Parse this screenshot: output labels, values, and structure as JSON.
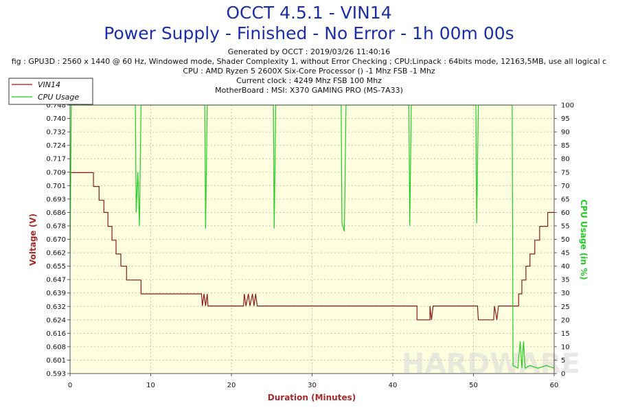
{
  "header": {
    "title": "OCCT 4.5.1 - VIN14",
    "subtitle": "Power Supply - Finished - No Error - 1h 00m 00s",
    "info_lines": [
      "Generated by OCCT : 2019/03/26 11:40:16",
      "fig : GPU3D : 2560 x 1440 @ 60 Hz, Windowed mode, Shader Complexity 1, without Error Checking ; CPU:Linpack : 64bits mode, 12163,5MB, use all logical c",
      "CPU : AMD Ryzen 5 2600X Six-Core Processor () -1 Mhz FSB -1 Mhz",
      "Current clock : 4249 Mhz FSB 100 Mhz",
      "MotherBoard : MSI: X370 GAMING PRO (MS-7A33)"
    ]
  },
  "watermark": "HARDWARE",
  "chart_data": {
    "type": "line",
    "xlabel": "Duration (Minutes)",
    "ylabel": "Voltage (V)",
    "y2label": "CPU Usage (in %)",
    "xlim": [
      0,
      60
    ],
    "ylim": [
      0.593,
      0.748
    ],
    "y2lim": [
      0,
      100
    ],
    "x_ticks": [
      "0",
      "10",
      "20",
      "30",
      "40",
      "50",
      "60"
    ],
    "y_ticks": [
      "0.748",
      "0.740",
      "0.732",
      "0.724",
      "0.717",
      "0.709",
      "0.701",
      "0.693",
      "0.686",
      "0.678",
      "0.670",
      "0.662",
      "0.655",
      "0.647",
      "0.639",
      "0.632",
      "0.624",
      "0.616",
      "0.608",
      "0.601",
      "0.593"
    ],
    "y2_ticks": [
      "100",
      "95",
      "90",
      "85",
      "80",
      "75",
      "70",
      "65",
      "60",
      "55",
      "50",
      "45",
      "40",
      "35",
      "30",
      "25",
      "20",
      "15",
      "10",
      "5",
      "0"
    ],
    "grid": true,
    "legend_position": "top-left",
    "colors": {
      "vin14": "#8b1a1a",
      "cpu": "#22cc22",
      "background": "#fdfde0",
      "grid": "#bbbb99"
    },
    "series": [
      {
        "name": "VIN14",
        "axis": "left",
        "points": [
          [
            0,
            0.709
          ],
          [
            2.9,
            0.709
          ],
          [
            2.9,
            0.701
          ],
          [
            3.6,
            0.701
          ],
          [
            3.6,
            0.693
          ],
          [
            4.2,
            0.693
          ],
          [
            4.2,
            0.686
          ],
          [
            4.7,
            0.686
          ],
          [
            4.7,
            0.678
          ],
          [
            5.2,
            0.678
          ],
          [
            5.2,
            0.67
          ],
          [
            5.7,
            0.67
          ],
          [
            5.7,
            0.662
          ],
          [
            6.3,
            0.662
          ],
          [
            6.3,
            0.655
          ],
          [
            7.0,
            0.655
          ],
          [
            7.0,
            0.647
          ],
          [
            8.8,
            0.647
          ],
          [
            8.8,
            0.639
          ],
          [
            16.3,
            0.639
          ],
          [
            16.4,
            0.632
          ],
          [
            16.6,
            0.639
          ],
          [
            16.8,
            0.632
          ],
          [
            17.0,
            0.639
          ],
          [
            17.1,
            0.632
          ],
          [
            21.5,
            0.632
          ],
          [
            21.6,
            0.639
          ],
          [
            21.8,
            0.632
          ],
          [
            22.1,
            0.639
          ],
          [
            22.3,
            0.632
          ],
          [
            22.6,
            0.639
          ],
          [
            22.8,
            0.632
          ],
          [
            23.0,
            0.639
          ],
          [
            23.2,
            0.632
          ],
          [
            43.0,
            0.632
          ],
          [
            43.0,
            0.624
          ],
          [
            44.6,
            0.624
          ],
          [
            44.6,
            0.632
          ],
          [
            44.8,
            0.624
          ],
          [
            45.0,
            0.632
          ],
          [
            50.5,
            0.632
          ],
          [
            50.6,
            0.624
          ],
          [
            52.5,
            0.624
          ],
          [
            52.6,
            0.632
          ],
          [
            52.9,
            0.624
          ],
          [
            53.1,
            0.632
          ],
          [
            55.6,
            0.632
          ],
          [
            55.6,
            0.639
          ],
          [
            56.0,
            0.639
          ],
          [
            56.0,
            0.647
          ],
          [
            56.5,
            0.647
          ],
          [
            56.5,
            0.655
          ],
          [
            57.0,
            0.655
          ],
          [
            57.0,
            0.662
          ],
          [
            57.6,
            0.662
          ],
          [
            57.6,
            0.67
          ],
          [
            58.2,
            0.67
          ],
          [
            58.2,
            0.678
          ],
          [
            59.2,
            0.678
          ],
          [
            59.2,
            0.686
          ],
          [
            60,
            0.686
          ]
        ]
      },
      {
        "name": "CPU Usage",
        "axis": "right",
        "points": [
          [
            0,
            40
          ],
          [
            0.15,
            100
          ],
          [
            8.1,
            100
          ],
          [
            8.2,
            60
          ],
          [
            8.4,
            75
          ],
          [
            8.6,
            55
          ],
          [
            8.8,
            100
          ],
          [
            16.7,
            100
          ],
          [
            16.8,
            54
          ],
          [
            17.0,
            100
          ],
          [
            25.2,
            100
          ],
          [
            25.3,
            54
          ],
          [
            25.5,
            100
          ],
          [
            33.6,
            100
          ],
          [
            33.7,
            56
          ],
          [
            34.0,
            53
          ],
          [
            34.2,
            100
          ],
          [
            42.0,
            100
          ],
          [
            42.1,
            55
          ],
          [
            42.3,
            100
          ],
          [
            50.3,
            100
          ],
          [
            50.4,
            56
          ],
          [
            50.6,
            100
          ],
          [
            54.8,
            100
          ],
          [
            54.9,
            3
          ],
          [
            55.5,
            2
          ],
          [
            55.8,
            12
          ],
          [
            56.0,
            2
          ],
          [
            56.2,
            12
          ],
          [
            56.4,
            2
          ],
          [
            57.0,
            3
          ],
          [
            58.0,
            2
          ],
          [
            59.0,
            3
          ],
          [
            60,
            2
          ]
        ]
      }
    ]
  }
}
